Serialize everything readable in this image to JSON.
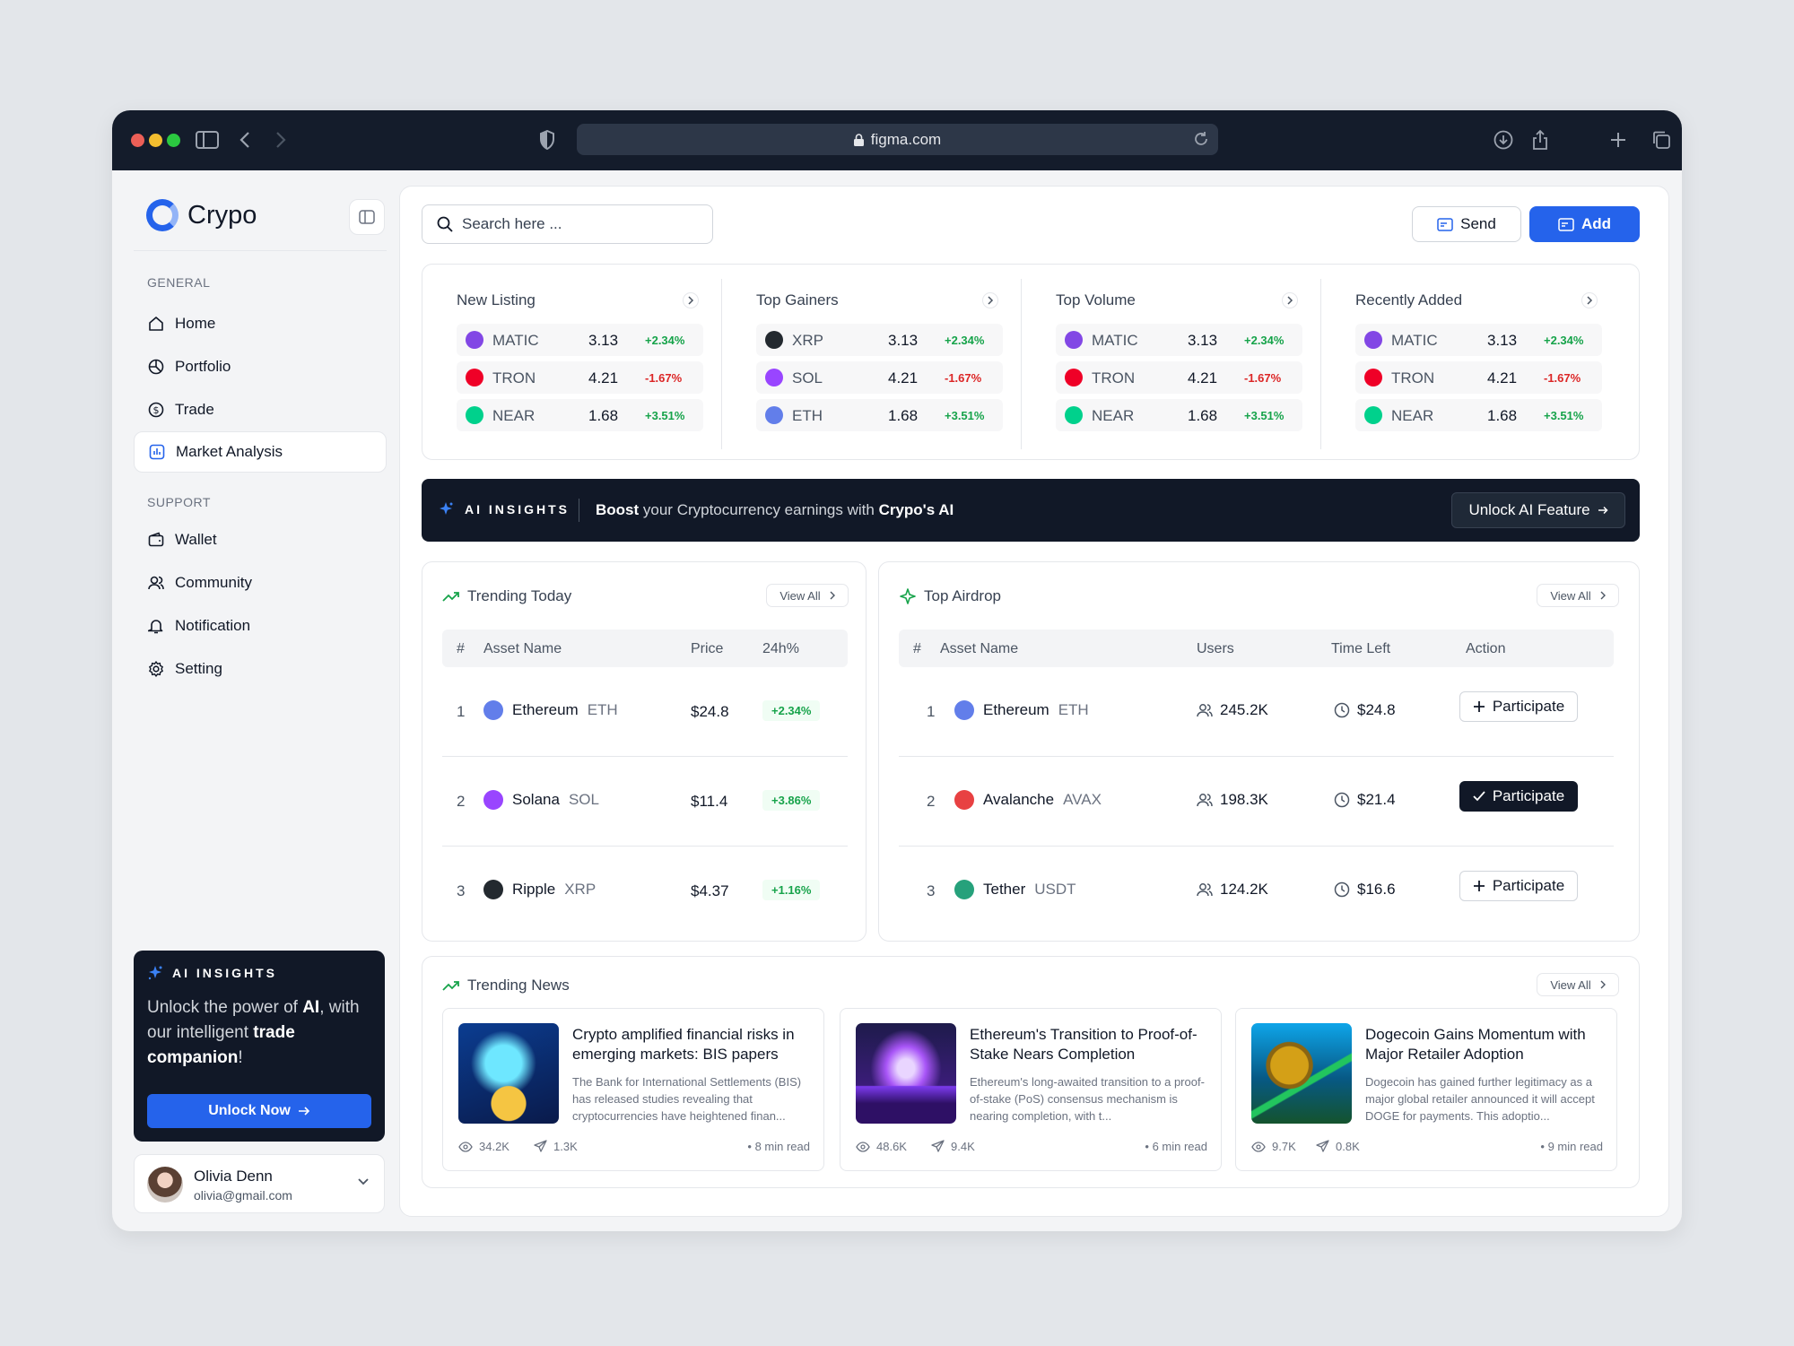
{
  "browser": {
    "url": "figma.com",
    "traffic_lights": [
      "#ec5f57",
      "#f3be2f",
      "#2bc840"
    ]
  },
  "sidebar": {
    "brand": "Crypo",
    "general_label": "GENERAL",
    "general_items": [
      {
        "label": "Home",
        "icon": "home-icon"
      },
      {
        "label": "Portfolio",
        "icon": "pie-chart-icon"
      },
      {
        "label": "Trade",
        "icon": "dollar-circle-icon"
      },
      {
        "label": "Market Analysis",
        "icon": "bar-chart-icon",
        "active": true
      }
    ],
    "support_label": "SUPPORT",
    "support_items": [
      {
        "label": "Wallet",
        "icon": "wallet-icon"
      },
      {
        "label": "Community",
        "icon": "users-icon"
      },
      {
        "label": "Notification",
        "icon": "bell-icon"
      },
      {
        "label": "Setting",
        "icon": "gear-icon"
      }
    ],
    "ai_card": {
      "label": "AI INSIGHTS",
      "msg_1": "Unlock the power of ",
      "msg_ai": "AI",
      "msg_2": ", with our intelligent ",
      "msg_trade": "trade companion",
      "msg_3": "!",
      "button": "Unlock Now"
    },
    "user": {
      "name": "Olivia Denn",
      "email": "olivia@gmail.com"
    }
  },
  "header": {
    "search_placeholder": "Search here ...",
    "send": "Send",
    "add": "Add"
  },
  "market": [
    {
      "title": "New Listing",
      "rows": [
        {
          "symbol": "MATIC",
          "price": "3.13",
          "change": "+2.34%",
          "up": true,
          "color": "#8247e5"
        },
        {
          "symbol": "TRON",
          "price": "4.21",
          "change": "-1.67%",
          "up": false,
          "color": "#ef0027"
        },
        {
          "symbol": "NEAR",
          "price": "1.68",
          "change": "+3.51%",
          "up": true,
          "color": "#00d18c"
        }
      ]
    },
    {
      "title": "Top Gainers",
      "rows": [
        {
          "symbol": "XRP",
          "price": "3.13",
          "change": "+2.34%",
          "up": true,
          "color": "#23292f"
        },
        {
          "symbol": "SOL",
          "price": "4.21",
          "change": "-1.67%",
          "up": false,
          "color": "#9945ff"
        },
        {
          "symbol": "ETH",
          "price": "1.68",
          "change": "+3.51%",
          "up": true,
          "color": "#627eea"
        }
      ]
    },
    {
      "title": "Top Volume",
      "rows": [
        {
          "symbol": "MATIC",
          "price": "3.13",
          "change": "+2.34%",
          "up": true,
          "color": "#8247e5"
        },
        {
          "symbol": "TRON",
          "price": "4.21",
          "change": "-1.67%",
          "up": false,
          "color": "#ef0027"
        },
        {
          "symbol": "NEAR",
          "price": "1.68",
          "change": "+3.51%",
          "up": true,
          "color": "#00d18c"
        }
      ]
    },
    {
      "title": "Recently Added",
      "rows": [
        {
          "symbol": "MATIC",
          "price": "3.13",
          "change": "+2.34%",
          "up": true,
          "color": "#8247e5"
        },
        {
          "symbol": "TRON",
          "price": "4.21",
          "change": "-1.67%",
          "up": false,
          "color": "#ef0027"
        },
        {
          "symbol": "NEAR",
          "price": "1.68",
          "change": "+3.51%",
          "up": true,
          "color": "#00d18c"
        }
      ]
    }
  ],
  "ai_bar": {
    "label": "AI INSIGHTS",
    "boost": "Boost",
    "text": " your Cryptocurrency earnings with ",
    "brand_ai": "Crypo's AI",
    "button": "Unlock AI Feature"
  },
  "trending": {
    "title": "Trending Today",
    "view_all": "View All",
    "columns": [
      "#",
      "Asset Name",
      "Price",
      "24h%"
    ],
    "rows": [
      {
        "rank": "1",
        "name": "Ethereum",
        "ticker": "ETH",
        "price": "$24.8",
        "change": "+2.34%",
        "color": "#627eea"
      },
      {
        "rank": "2",
        "name": "Solana",
        "ticker": "SOL",
        "price": "$11.4",
        "change": "+3.86%",
        "color": "#9945ff"
      },
      {
        "rank": "3",
        "name": "Ripple",
        "ticker": "XRP",
        "price": "$4.37",
        "change": "+1.16%",
        "color": "#23292f"
      }
    ]
  },
  "airdrop": {
    "title": "Top Airdrop",
    "view_all": "View All",
    "columns": [
      "#",
      "Asset Name",
      "Users",
      "Time Left",
      "Action"
    ],
    "rows": [
      {
        "rank": "1",
        "name": "Ethereum",
        "ticker": "ETH",
        "users": "245.2K",
        "time": "$24.8",
        "action": "Participate",
        "joined": false,
        "color": "#627eea"
      },
      {
        "rank": "2",
        "name": "Avalanche",
        "ticker": "AVAX",
        "users": "198.3K",
        "time": "$21.4",
        "action": "Participate",
        "joined": true,
        "color": "#e84142"
      },
      {
        "rank": "3",
        "name": "Tether",
        "ticker": "USDT",
        "users": "124.2K",
        "time": "$16.6",
        "action": "Participate",
        "joined": false,
        "color": "#26a17b"
      }
    ]
  },
  "news": {
    "title": "Trending News",
    "view_all": "View All",
    "items": [
      {
        "title": "Crypto amplified financial risks in emerging markets: BIS papers",
        "desc": "The Bank for International Settlements (BIS) has released studies revealing that cryptocurrencies have heightened finan...",
        "views": "34.2K",
        "shares": "1.3K",
        "read": "• 8 min read",
        "image": "bitcoin-hand-image"
      },
      {
        "title": "Ethereum's Transition to Proof-of-Stake Nears Completion",
        "desc": "Ethereum's long-awaited transition to a proof-of-stake (PoS) consensus mechanism is nearing completion, with t...",
        "views": "48.6K",
        "shares": "9.4K",
        "read": "• 6 min read",
        "image": "ethereum-crystal-image"
      },
      {
        "title": "Dogecoin Gains Momentum with Major Retailer Adoption",
        "desc": "Dogecoin has gained further legitimacy as a major global retailer announced it will accept DOGE for payments. This adoptio...",
        "views": "9.7K",
        "shares": "0.8K",
        "read": "• 9 min read",
        "image": "dogecoin-chart-image"
      }
    ]
  },
  "colors": {
    "accent": "#2563eb",
    "dark": "#111827",
    "up": "#16a34a",
    "down": "#dc2626"
  }
}
